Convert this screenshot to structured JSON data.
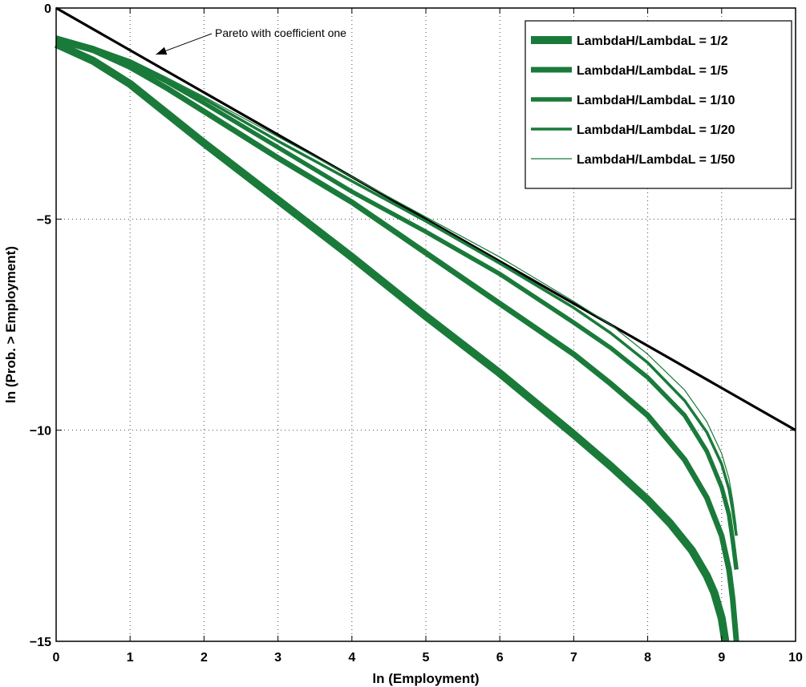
{
  "chart_data": {
    "type": "line",
    "title": "",
    "xlabel": "ln (Employment)",
    "ylabel": "ln (Prob. > Employment)",
    "xlim": [
      0,
      10
    ],
    "ylim": [
      -15,
      0
    ],
    "x_ticks": [
      "0",
      "1",
      "2",
      "3",
      "4",
      "5",
      "6",
      "7",
      "8",
      "9",
      "10"
    ],
    "y_ticks": [
      "0",
      "−5",
      "−10",
      "−15"
    ],
    "grid": true,
    "legend_position": "top-right",
    "series_color": "#1a7a3a",
    "reference_line": {
      "x": [
        0,
        10
      ],
      "y": [
        0,
        -10
      ],
      "color": "#000000"
    },
    "annotation": {
      "text": "Pareto with coefficient one",
      "arrow_target": [
        1.35,
        -1.1
      ]
    },
    "series": [
      {
        "name": "LambdaH/LambdaL = 1/2",
        "x": [
          0,
          0.5,
          1,
          1.5,
          2,
          3,
          4,
          5,
          6,
          7,
          7.5,
          8,
          8.3,
          8.6,
          8.8,
          8.9,
          9.0,
          9.05
        ],
        "y": [
          -0.85,
          -1.25,
          -1.8,
          -2.5,
          -3.2,
          -4.55,
          -5.9,
          -7.3,
          -8.65,
          -10.1,
          -10.85,
          -11.65,
          -12.2,
          -12.85,
          -13.45,
          -13.85,
          -14.45,
          -15.0
        ]
      },
      {
        "name": "LambdaH/LambdaL = 1/5",
        "x": [
          0,
          0.5,
          1,
          1.5,
          2,
          3,
          4,
          5,
          6,
          7,
          7.5,
          8,
          8.5,
          8.8,
          9.0,
          9.1,
          9.15,
          9.2
        ],
        "y": [
          -0.75,
          -1.0,
          -1.4,
          -1.9,
          -2.45,
          -3.55,
          -4.6,
          -5.8,
          -7.0,
          -8.2,
          -8.9,
          -9.65,
          -10.7,
          -11.6,
          -12.5,
          -13.3,
          -14.0,
          -15.0
        ]
      },
      {
        "name": "LambdaH/LambdaL = 1/10",
        "x": [
          0,
          0.5,
          1,
          1.5,
          2,
          3,
          4,
          5,
          6,
          7,
          7.5,
          8,
          8.5,
          8.8,
          9.0,
          9.1,
          9.15,
          9.2
        ],
        "y": [
          -0.7,
          -0.95,
          -1.3,
          -1.75,
          -2.25,
          -3.3,
          -4.35,
          -5.3,
          -6.3,
          -7.45,
          -8.05,
          -8.75,
          -9.65,
          -10.5,
          -11.35,
          -12.0,
          -12.6,
          -13.3
        ]
      },
      {
        "name": "LambdaH/LambdaL = 1/20",
        "x": [
          0,
          0.5,
          1,
          1.5,
          2,
          3,
          4,
          5,
          6,
          7,
          7.5,
          8,
          8.5,
          8.8,
          9.0,
          9.1,
          9.15,
          9.2
        ],
        "y": [
          -0.7,
          -0.93,
          -1.25,
          -1.7,
          -2.15,
          -3.15,
          -4.1,
          -5.05,
          -6.05,
          -7.1,
          -7.7,
          -8.4,
          -9.3,
          -10.05,
          -10.8,
          -11.4,
          -11.9,
          -12.5
        ]
      },
      {
        "name": "LambdaH/LambdaL = 1/50",
        "x": [
          0,
          0.5,
          1,
          1.5,
          2,
          3,
          4,
          5,
          6,
          7,
          7.5,
          8,
          8.5,
          8.8,
          9.0,
          9.1,
          9.15,
          9.2
        ],
        "y": [
          -0.7,
          -0.92,
          -1.22,
          -1.65,
          -2.1,
          -3.05,
          -4.0,
          -4.95,
          -5.9,
          -6.95,
          -7.5,
          -8.2,
          -9.05,
          -9.8,
          -10.55,
          -11.15,
          -11.65,
          -12.3
        ]
      }
    ]
  }
}
